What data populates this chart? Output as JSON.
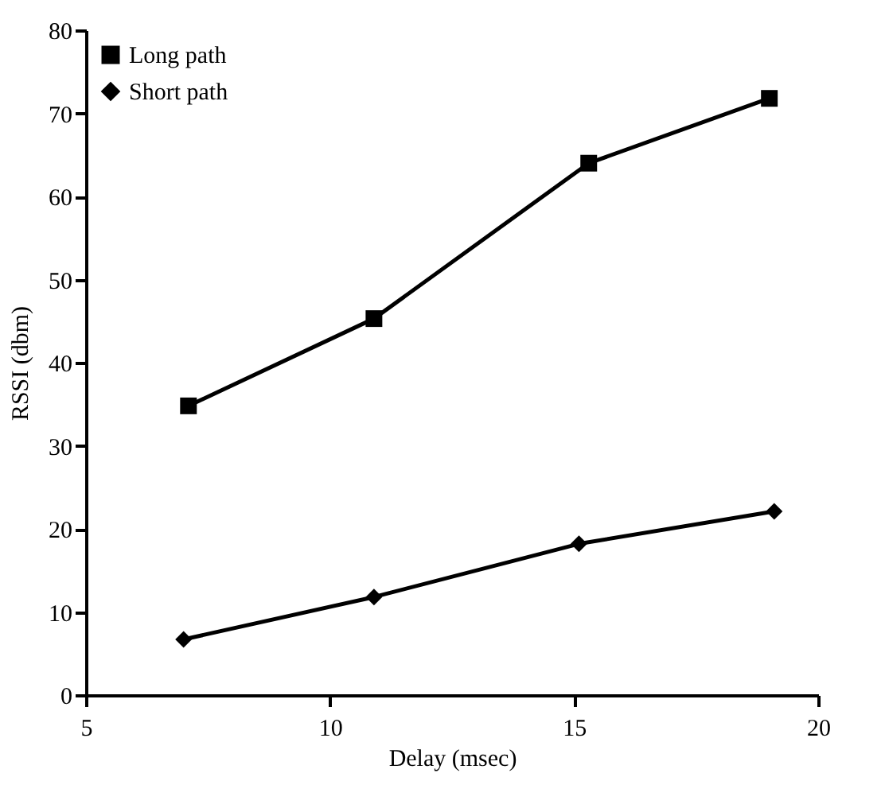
{
  "chart_data": {
    "type": "line",
    "xlabel": "Delay (msec)",
    "ylabel": "RSSI (dbm)",
    "xlim": [
      5,
      20
    ],
    "xticks": [
      5,
      10,
      15,
      20
    ],
    "ylim": [
      0,
      80
    ],
    "yticks": [
      0,
      10,
      20,
      30,
      40,
      50,
      60,
      70,
      80
    ],
    "grid": false,
    "legend": "top left",
    "series": [
      {
        "name": "Long path",
        "color": "#000000",
        "marker": "square",
        "x": [
          7.1,
          10.9,
          15.3,
          19.0
        ],
        "values": [
          34.8,
          45.3,
          64.0,
          71.8
        ]
      },
      {
        "name": "Short path",
        "color": "#000000",
        "marker": "diamond",
        "x": [
          7.0,
          10.9,
          15.1,
          19.1
        ],
        "values": [
          6.7,
          11.8,
          18.2,
          22.1
        ]
      }
    ]
  }
}
